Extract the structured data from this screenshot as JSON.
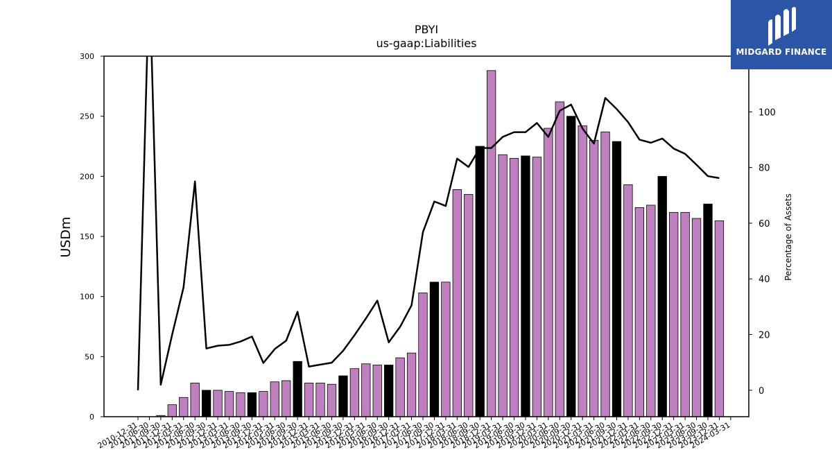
{
  "chart_data": {
    "type": "bar+line",
    "title": "PBYI",
    "subtitle": "us-gaap:Liabilities",
    "ylabel_left": "USDm",
    "ylabel_right": "Percentage of Assets",
    "ylim_left": [
      0,
      300
    ],
    "yticks_left": [
      "0",
      "50",
      "100",
      "150",
      "200",
      "250",
      "300"
    ],
    "ylim_right": [
      -9.5,
      120
    ],
    "yticks_right": [
      "0",
      "20",
      "40",
      "60",
      "80",
      "100"
    ],
    "grid": false,
    "bar_colors": {
      "quarter": "#bf80bf",
      "year_end": "#000000"
    },
    "line_color": "#000000",
    "categories": [
      "2010-12-31",
      "2011-06-30",
      "2011-09-30",
      "2011-12-31",
      "2012-03-31",
      "2012-06-30",
      "2012-09-30",
      "2012-12-31",
      "2013-03-31",
      "2013-06-30",
      "2013-09-30",
      "2013-12-31",
      "2014-03-31",
      "2014-06-30",
      "2014-09-30",
      "2014-12-31",
      "2015-03-31",
      "2015-06-30",
      "2015-09-30",
      "2015-12-31",
      "2016-03-31",
      "2016-06-30",
      "2016-09-30",
      "2016-12-31",
      "2017-03-31",
      "2017-06-30",
      "2017-09-30",
      "2017-12-31",
      "2018-03-31",
      "2018-06-30",
      "2018-09-30",
      "2018-12-31",
      "2019-03-31",
      "2019-06-30",
      "2019-09-30",
      "2019-12-31",
      "2020-03-31",
      "2020-06-30",
      "2020-09-30",
      "2020-12-31",
      "2021-03-31",
      "2021-06-30",
      "2021-09-30",
      "2021-12-31",
      "2022-03-31",
      "2022-06-30",
      "2022-09-30",
      "2022-12-31",
      "2023-03-31",
      "2023-06-30",
      "2023-09-30",
      "2023-12-31",
      "2024-03-31"
    ],
    "series": [
      {
        "kind": "bar",
        "values": [
          0,
          0,
          1,
          10,
          16,
          28,
          22,
          22,
          21,
          20,
          20,
          21,
          29,
          30,
          46,
          28,
          28,
          27,
          34,
          40,
          44,
          43,
          43,
          49,
          53,
          103,
          112,
          112,
          189,
          185,
          225,
          288,
          218,
          215,
          217,
          216,
          240,
          262,
          250,
          242,
          230,
          237,
          229,
          193,
          174,
          176,
          200,
          170,
          170,
          165,
          177,
          163,
          null
        ],
        "year_end": [
          false,
          false,
          false,
          false,
          false,
          false,
          true,
          false,
          false,
          false,
          true,
          false,
          false,
          false,
          true,
          false,
          false,
          false,
          true,
          false,
          false,
          false,
          true,
          false,
          false,
          false,
          true,
          false,
          false,
          false,
          true,
          false,
          false,
          false,
          true,
          false,
          false,
          false,
          true,
          false,
          false,
          false,
          true,
          false,
          false,
          false,
          true,
          false,
          false,
          false,
          true,
          false,
          false
        ]
      },
      {
        "kind": "line",
        "values": [
          0,
          150,
          2,
          20,
          37,
          75,
          15,
          16,
          16.3,
          17.5,
          19.3,
          9.8,
          14.8,
          17.8,
          28.2,
          8.5,
          9.2,
          9.9,
          14.2,
          19.8,
          25.8,
          32.2,
          17.2,
          22.8,
          30.5,
          56.8,
          67.8,
          66.2,
          83.2,
          80.2,
          87,
          87,
          91,
          92.7,
          92.7,
          96,
          91,
          100.4,
          102.6,
          94,
          88.6,
          105,
          101,
          96.3,
          90,
          88.9,
          90.4,
          86.8,
          84.9,
          81,
          76.9,
          76.2,
          null
        ]
      }
    ]
  },
  "logo": {
    "text": "MIDGARD FINANCE",
    "color": "#2b56a8"
  }
}
